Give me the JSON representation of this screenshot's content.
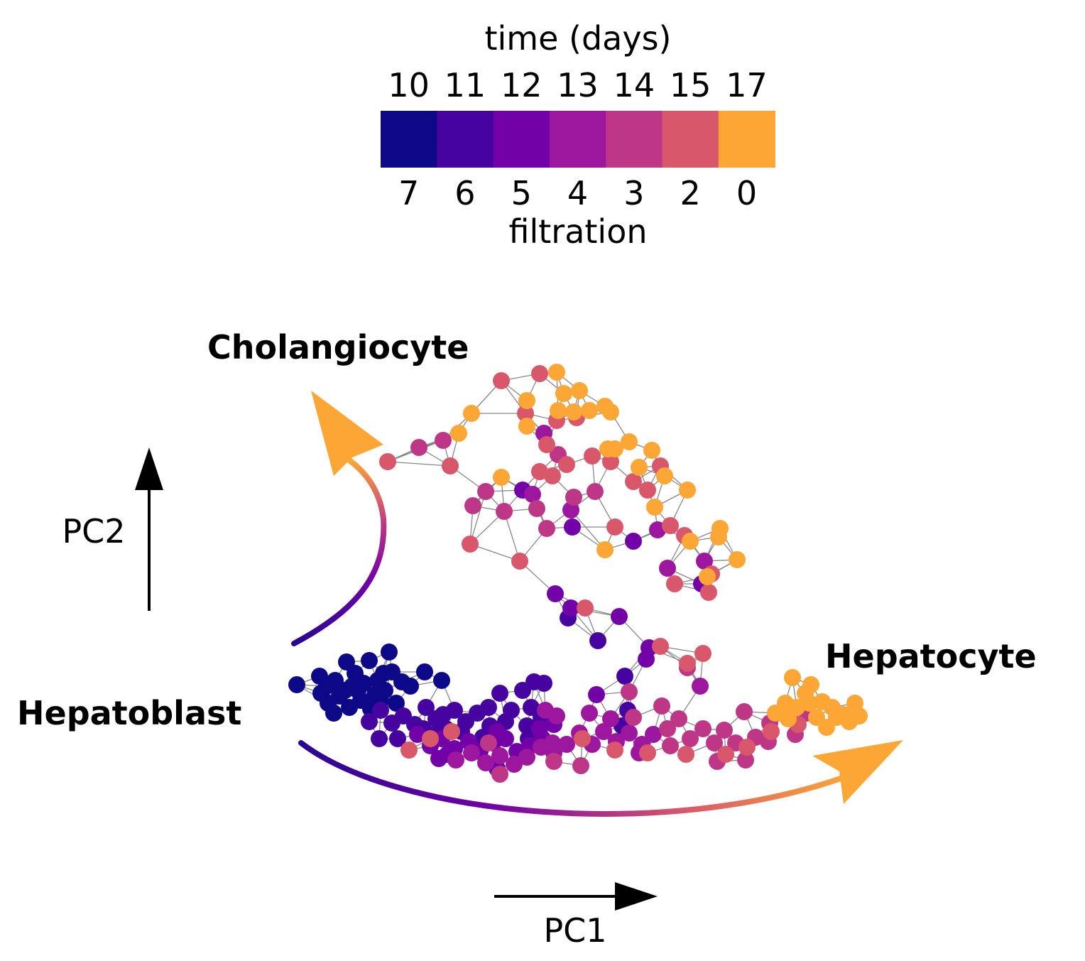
{
  "chart_data": {
    "type": "scatter",
    "description": "PCA projection of a cell graph colored by time point",
    "colorbar": {
      "title": "time (days)",
      "time_labels": [
        "10",
        "11",
        "12",
        "13",
        "14",
        "15",
        "17"
      ],
      "filtration_labels": [
        "7",
        "6",
        "5",
        "4",
        "3",
        "2",
        "0"
      ],
      "filtration_title": "filtration",
      "colors": [
        "#0d0887",
        "#46039f",
        "#7201a8",
        "#9c179e",
        "#bd3786",
        "#d8576b",
        "#fca636"
      ]
    },
    "annotations": {
      "cholangiocyte": "Cholangiocyte",
      "hepatocyte": "Hepatocyte",
      "hepatoblast": "Hepatoblast"
    },
    "axes": {
      "xlabel": "PC1",
      "ylabel": "PC2"
    },
    "edge_color": "#888888",
    "groups": [
      {
        "filtration": 7,
        "color_index": 0,
        "points": [
          [
            418,
            964
          ],
          [
            450,
            952
          ],
          [
            460,
            966
          ],
          [
            472,
            958
          ],
          [
            488,
            932
          ],
          [
            500,
            948
          ],
          [
            512,
            962
          ],
          [
            520,
            930
          ],
          [
            532,
            958
          ],
          [
            548,
            918
          ],
          [
            552,
            946
          ],
          [
            566,
            960
          ],
          [
            578,
            966
          ],
          [
            598,
            946
          ],
          [
            622,
            958
          ],
          [
            462,
            990
          ],
          [
            478,
            980
          ],
          [
            492,
            996
          ],
          [
            508,
            986
          ],
          [
            528,
            978
          ],
          [
            542,
            972
          ],
          [
            558,
            990
          ],
          [
            470,
            1004
          ],
          [
            496,
            966
          ],
          [
            452,
            976
          ],
          [
            536,
            986
          ],
          [
            486,
            972
          ],
          [
            504,
            972
          ],
          [
            522,
            998
          ],
          [
            540,
            948
          ]
        ]
      },
      {
        "filtration": 6,
        "color_index": 1,
        "points": [
          [
            520,
            1016
          ],
          [
            536,
            1000
          ],
          [
            552,
            1018
          ],
          [
            568,
            1008
          ],
          [
            584,
            1020
          ],
          [
            600,
            996
          ],
          [
            614,
            1012
          ],
          [
            628,
            1026
          ],
          [
            640,
            1000
          ],
          [
            656,
            1016
          ],
          [
            672,
            1004
          ],
          [
            690,
            1022
          ],
          [
            704,
            976
          ],
          [
            720,
            1000
          ],
          [
            736,
            972
          ],
          [
            748,
            996
          ],
          [
            762,
            1010
          ],
          [
            534,
            1040
          ],
          [
            560,
            1040
          ],
          [
            612,
            1034
          ],
          [
            650,
            1030
          ],
          [
            680,
            1038
          ],
          [
            712,
            1016
          ],
          [
            742,
            1022
          ],
          [
            752,
            960
          ],
          [
            766,
            962
          ],
          [
            842,
            902
          ],
          [
            800,
            870
          ],
          [
            876,
            1022
          ],
          [
            884,
            1000
          ],
          [
            880,
            952
          ],
          [
            744,
            1040
          ],
          [
            596,
            1026
          ],
          [
            624,
            1006
          ],
          [
            688,
            996
          ]
        ]
      },
      {
        "filtration": 5,
        "color_index": 2,
        "points": [
          [
            588,
            1034
          ],
          [
            606,
            1050
          ],
          [
            622,
            1040
          ],
          [
            640,
            1054
          ],
          [
            660,
            1044
          ],
          [
            676,
            1058
          ],
          [
            694,
            1046
          ],
          [
            712,
            1040
          ],
          [
            728,
            1058
          ],
          [
            746,
            1050
          ],
          [
            764,
            1040
          ],
          [
            780,
            1020
          ],
          [
            806,
            742
          ],
          [
            892,
            762
          ],
          [
            914,
            912
          ],
          [
            910,
            928
          ],
          [
            840,
            978
          ],
          [
            988,
            822
          ],
          [
            736,
            690
          ],
          [
            782,
            836
          ],
          [
            804,
            856
          ],
          [
            872,
            868
          ],
          [
            630,
            1062
          ],
          [
            700,
            1030
          ],
          [
            760,
            1026
          ],
          [
            618,
            1068
          ],
          [
            700,
            1082
          ]
        ]
      },
      {
        "filtration": 4,
        "color_index": 3,
        "points": [
          [
            642,
            1070
          ],
          [
            664,
            1060
          ],
          [
            684,
            1074
          ],
          [
            704,
            1064
          ],
          [
            724,
            1076
          ],
          [
            742,
            1066
          ],
          [
            762,
            1052
          ],
          [
            780,
            1060
          ],
          [
            798,
            1048
          ],
          [
            816,
            1032
          ],
          [
            834,
            1048
          ],
          [
            850,
            1030
          ],
          [
            868,
            1044
          ],
          [
            886,
            1032
          ],
          [
            904,
            1048
          ],
          [
            920,
            1034
          ],
          [
            766,
            610
          ],
          [
            750,
            696
          ],
          [
            804,
            718
          ],
          [
            926,
            746
          ],
          [
            940,
            800
          ],
          [
            986,
            966
          ],
          [
            992,
            790
          ],
          [
            768,
            1000
          ],
          [
            784,
            1008
          ],
          [
            830,
            1004
          ],
          [
            860,
            1012
          ],
          [
            900,
            1060
          ],
          [
            778,
            1046
          ]
        ]
      },
      {
        "filtration": 3,
        "color_index": 4,
        "points": [
          [
            590,
            630
          ],
          [
            624,
            620
          ],
          [
            666,
            712
          ],
          [
            684,
            692
          ],
          [
            710,
            720
          ],
          [
            756,
            716
          ],
          [
            770,
            744
          ],
          [
            786,
            640
          ],
          [
            808,
            700
          ],
          [
            838,
            692
          ],
          [
            892,
            1010
          ],
          [
            940,
            1026
          ],
          [
            956,
            1012
          ],
          [
            972,
            1040
          ],
          [
            990,
            1026
          ],
          [
            1006,
            1046
          ],
          [
            1020,
            1028
          ],
          [
            1036,
            1046
          ],
          [
            1048,
            1002
          ],
          [
            1064,
            1038
          ],
          [
            1082,
            1044
          ],
          [
            1110,
            1008
          ],
          [
            1136,
            1004
          ],
          [
            1120,
            1034
          ],
          [
            968,
            940
          ],
          [
            932,
            994
          ],
          [
            944,
            1050
          ],
          [
            1010,
            1072
          ],
          [
            1050,
            1070
          ],
          [
            1084,
            1018
          ],
          [
            818,
            1078
          ],
          [
            780,
            1072
          ],
          [
            704,
            1090
          ],
          [
            688,
            1046
          ],
          [
            886,
            974
          ]
        ]
      },
      {
        "filtration": 2,
        "color_index": 5,
        "points": [
          [
            546,
            650
          ],
          [
            634,
            656
          ],
          [
            662,
            766
          ],
          [
            706,
            536
          ],
          [
            732,
            790
          ],
          [
            740,
            582
          ],
          [
            760,
            526
          ],
          [
            760,
            664
          ],
          [
            778,
            670
          ],
          [
            784,
            592
          ],
          [
            798,
            654
          ],
          [
            770,
            626
          ],
          [
            812,
            588
          ],
          [
            834,
            642
          ],
          [
            860,
            650
          ],
          [
            866,
            742
          ],
          [
            892,
            678
          ],
          [
            912,
            690
          ],
          [
            930,
            656
          ],
          [
            944,
            740
          ],
          [
            950,
            822
          ],
          [
            964,
            754
          ],
          [
            998,
            834
          ],
          [
            1002,
            808
          ],
          [
            968,
            934
          ],
          [
            990,
            920
          ],
          [
            824,
            856
          ],
          [
            930,
            910
          ],
          [
            912,
            1060
          ],
          [
            866,
            1056
          ],
          [
            966,
            1062
          ],
          [
            1022,
            1062
          ],
          [
            1052,
            1052
          ],
          [
            1086,
            1030
          ],
          [
            1124,
            1020
          ],
          [
            576,
            1056
          ],
          [
            606,
            1040
          ],
          [
            636,
            1030
          ],
          [
            820,
            1040
          ]
        ]
      },
      {
        "filtration": 0,
        "color_index": 6,
        "points": [
          [
            646,
            610
          ],
          [
            664,
            582
          ],
          [
            706,
            672
          ],
          [
            742,
            564
          ],
          [
            742,
            600
          ],
          [
            784,
            524
          ],
          [
            794,
            554
          ],
          [
            816,
            550
          ],
          [
            786,
            578
          ],
          [
            808,
            580
          ],
          [
            830,
            578
          ],
          [
            852,
            572
          ],
          [
            860,
            580
          ],
          [
            856,
            632
          ],
          [
            866,
            632
          ],
          [
            886,
            622
          ],
          [
            900,
            658
          ],
          [
            918,
            634
          ],
          [
            922,
            714
          ],
          [
            936,
            670
          ],
          [
            968,
            690
          ],
          [
            972,
            762
          ],
          [
            996,
            812
          ],
          [
            1014,
            744
          ],
          [
            1012,
            756
          ],
          [
            1038,
            788
          ],
          [
            852,
            774
          ],
          [
            1116,
            954
          ],
          [
            1142,
            964
          ],
          [
            1106,
            990
          ],
          [
            1122,
            996
          ],
          [
            1140,
            990
          ],
          [
            1158,
            988
          ],
          [
            1172,
            996
          ],
          [
            1188,
            1006
          ],
          [
            1204,
            990
          ],
          [
            1210,
            1008
          ],
          [
            1196,
            1016
          ],
          [
            1178,
            1010
          ],
          [
            1150,
            1010
          ],
          [
            1164,
            1024
          ],
          [
            1134,
            976
          ],
          [
            1092,
            1004
          ],
          [
            1110,
            1012
          ]
        ]
      }
    ]
  }
}
